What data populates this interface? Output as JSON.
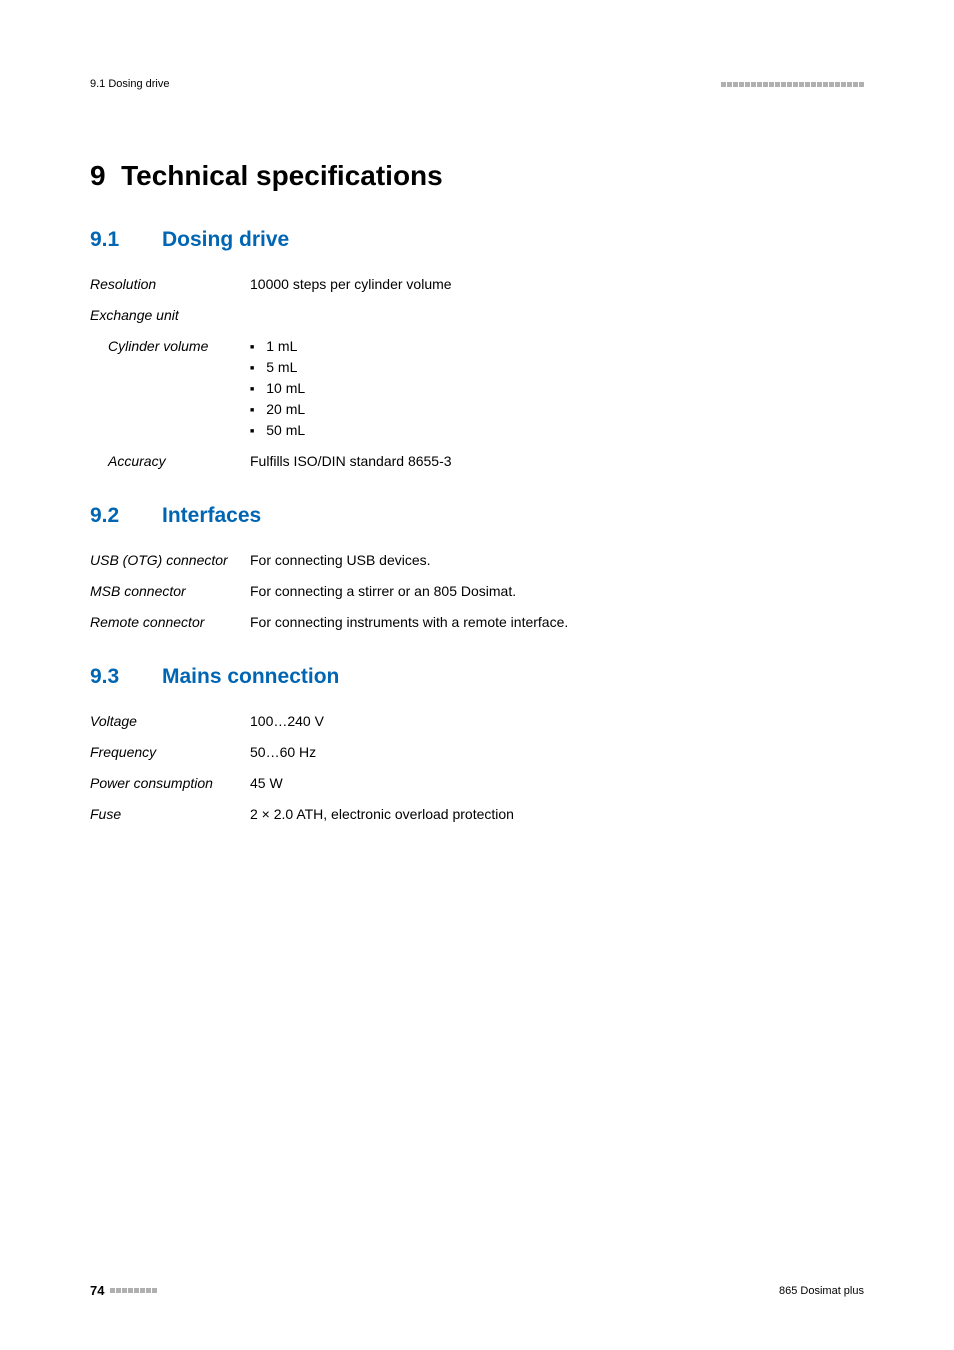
{
  "header": {
    "left": "9.1 Dosing drive",
    "right_squares": 24
  },
  "chapter": {
    "number": "9",
    "title": "Technical specifications"
  },
  "sections": [
    {
      "number": "9.1",
      "title": "Dosing drive",
      "rows": [
        {
          "label": "Resolution",
          "value": "10000 steps per cylinder volume",
          "indent": false
        },
        {
          "label": "Exchange unit",
          "value": "",
          "indent": false
        },
        {
          "label": "Cylinder volume",
          "bullets": [
            "1 mL",
            "5 mL",
            "10 mL",
            "20 mL",
            "50 mL"
          ],
          "indent": true
        },
        {
          "label": "Accuracy",
          "value": "Fulfills ISO/DIN standard 8655-3",
          "indent": true
        }
      ]
    },
    {
      "number": "9.2",
      "title": "Interfaces",
      "rows": [
        {
          "label": "USB (OTG) connector",
          "value": "For connecting USB devices.",
          "indent": false
        },
        {
          "label": "MSB connector",
          "value": "For connecting a stirrer or an 805 Dosimat.",
          "indent": false
        },
        {
          "label": "Remote connector",
          "value": "For connecting instruments with a remote interface.",
          "indent": false
        }
      ]
    },
    {
      "number": "9.3",
      "title": "Mains connection",
      "rows": [
        {
          "label": "Voltage",
          "value": "100…240 V",
          "indent": false
        },
        {
          "label": "Frequency",
          "value": "50…60 Hz",
          "indent": false
        },
        {
          "label": "Power consumption",
          "value": "45 W",
          "indent": false
        },
        {
          "label": "Fuse",
          "value": "2 × 2.0 ATH, electronic overload protection",
          "indent": false
        }
      ]
    }
  ],
  "footer": {
    "page": "74",
    "left_squares": 8,
    "right": "865 Dosimat plus"
  },
  "colors": {
    "section_title": "#0066b3",
    "text": "#000000",
    "squares": "#b0b0b0",
    "background": "#ffffff"
  },
  "typography": {
    "chapter_fontsize": 28,
    "section_fontsize": 21,
    "body_fontsize": 14,
    "header_fontsize": 11
  }
}
